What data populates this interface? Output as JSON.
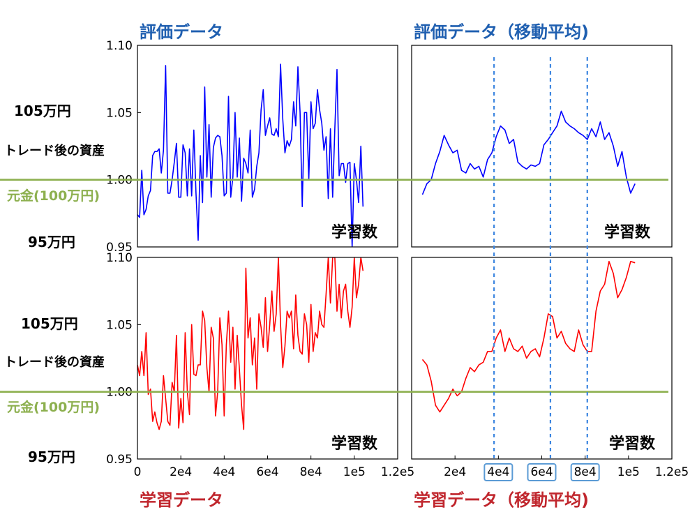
{
  "headers": {
    "eval": "評価データ",
    "eval_ma": "評価データ（移動平均)",
    "train": "学習データ",
    "train_ma": "学習データ（移動平均)"
  },
  "annotations": {
    "label_105": "105万円",
    "label_after": "トレード後の資産",
    "label_principal": "元金(100万円)",
    "label_95": "95万円",
    "corner_label": "学習数"
  },
  "colors": {
    "eval": "#0000ff",
    "train": "#ff0000",
    "baseline": "#8db04f",
    "header_blue": "#1f5fb0",
    "header_red": "#c0262d",
    "marker_line": "#3d86e0",
    "highlight_box": "#5b9bd5"
  },
  "highlighted_ticks": [
    "4e4",
    "6e4",
    "8e4"
  ],
  "chart_data": [
    {
      "id": "eval",
      "type": "line",
      "title": "評価データ",
      "xlabel": "",
      "ylabel": "",
      "xlim": [
        0,
        120000
      ],
      "ylim": [
        0.95,
        1.1
      ],
      "yticks": [
        "1.10",
        "1.05",
        "1.00",
        "0.95"
      ],
      "xticks": [],
      "baseline": 1.0,
      "series": [
        {
          "x": [
            0,
            1000,
            2000,
            3000,
            4000,
            5000,
            6000,
            7000,
            8000,
            9000,
            10000,
            11000,
            12000,
            13000,
            14000,
            15000,
            16000,
            17000,
            18000,
            19000,
            20000,
            21000,
            22000,
            23000,
            24000,
            25000,
            26000,
            27000,
            28000,
            29000,
            30000,
            31000,
            32000,
            33000,
            34000,
            35000,
            36000,
            37000,
            38000,
            39000,
            40000,
            41000,
            42000,
            43000,
            44000,
            45000,
            46000,
            47000,
            48000,
            49000,
            50000,
            51000,
            52000,
            53000,
            54000,
            55000,
            56000,
            57000,
            58000,
            59000,
            60000,
            61000,
            62000,
            63000,
            64000,
            65000,
            66000,
            67000,
            68000,
            69000,
            70000,
            71000,
            72000,
            73000,
            74000,
            75000,
            76000,
            77000,
            78000,
            79000,
            80000,
            81000,
            82000,
            83000,
            84000,
            85000,
            86000,
            87000,
            88000,
            89000,
            90000,
            91000,
            92000,
            93000,
            94000,
            95000,
            96000,
            97000,
            98000,
            99000,
            100000,
            101000,
            102000,
            103000,
            104000
          ],
          "values": [
            0.974,
            0.972,
            1.007,
            0.974,
            0.978,
            0.988,
            0.992,
            1.018,
            1.021,
            1.021,
            1.023,
            1.005,
            1.022,
            1.085,
            0.99,
            0.99,
            1.0,
            1.013,
            1.027,
            0.987,
            0.987,
            1.026,
            1.02,
            0.988,
            1.023,
            0.988,
            1.037,
            0.99,
            0.955,
            1.018,
            0.983,
            1.069,
            1.002,
            1.041,
            0.987,
            1.024,
            1.031,
            1.033,
            1.032,
            1.018,
            0.988,
            0.99,
            1.062,
            0.987,
            1.002,
            1.05,
            1.002,
            1.031,
            0.984,
            1.016,
            1.012,
            1.005,
            1.037,
            0.987,
            0.993,
            1.01,
            1.02,
            1.052,
            1.067,
            1.033,
            1.04,
            1.046,
            1.034,
            1.033,
            1.038,
            1.032,
            1.086,
            1.045,
            1.02,
            1.029,
            1.025,
            1.03,
            1.058,
            1.04,
            1.084,
            1.05,
            0.98,
            1.05,
            1.05,
            1.0,
            1.058,
            1.038,
            1.042,
            1.067,
            1.052,
            1.042,
            1.022,
            1.032,
            0.986,
            1.038,
            0.987,
            1.038,
            1.082,
            1.003,
            1.012,
            1.012,
            0.998,
            1.012,
            1.013,
            0.95,
            1.012,
            1.0,
            0.983,
            1.025,
            0.98
          ]
        }
      ]
    },
    {
      "id": "eval_ma",
      "type": "line",
      "title": "評価データ（移動平均)",
      "xlabel": "",
      "ylabel": "",
      "xlim": [
        0,
        120000
      ],
      "ylim": [
        0.95,
        1.1
      ],
      "yticks": [],
      "xticks": [],
      "baseline": 1.0,
      "series": [
        {
          "x": [
            5000,
            7000,
            9000,
            11000,
            13000,
            15000,
            17000,
            19000,
            21000,
            23000,
            25000,
            27000,
            29000,
            31000,
            33000,
            35000,
            37000,
            39000,
            41000,
            43000,
            45000,
            47000,
            49000,
            51000,
            53000,
            55000,
            57000,
            59000,
            61000,
            63000,
            65000,
            67000,
            69000,
            71000,
            73000,
            75000,
            77000,
            79000,
            81000,
            83000,
            85000,
            87000,
            89000,
            91000,
            93000,
            95000,
            97000,
            99000,
            101000,
            103000
          ],
          "values": [
            0.989,
            0.997,
            1.0,
            1.012,
            1.021,
            1.033,
            1.026,
            1.02,
            1.022,
            1.007,
            1.005,
            1.012,
            1.008,
            1.01,
            1.002,
            1.015,
            1.02,
            1.032,
            1.04,
            1.037,
            1.027,
            1.03,
            1.013,
            1.01,
            1.008,
            1.011,
            1.01,
            1.012,
            1.026,
            1.03,
            1.035,
            1.04,
            1.051,
            1.043,
            1.04,
            1.038,
            1.035,
            1.033,
            1.03,
            1.038,
            1.032,
            1.043,
            1.03,
            1.035,
            1.025,
            1.01,
            1.021,
            1.002,
            0.99,
            0.997
          ]
        }
      ]
    },
    {
      "id": "train",
      "type": "line",
      "title": "学習データ",
      "xlabel": "",
      "ylabel": "",
      "xlim": [
        0,
        120000
      ],
      "ylim": [
        0.95,
        1.1
      ],
      "yticks": [
        "1.10",
        "1.05",
        "1.00",
        "0.95"
      ],
      "xticks": [
        "0",
        "2e4",
        "4e4",
        "6e4",
        "8e4",
        "1e5",
        "1.2e5"
      ],
      "baseline": 1.0,
      "series": [
        {
          "x": [
            0,
            1000,
            2000,
            3000,
            4000,
            5000,
            6000,
            7000,
            8000,
            9000,
            10000,
            11000,
            12000,
            13000,
            14000,
            15000,
            16000,
            17000,
            18000,
            19000,
            20000,
            21000,
            22000,
            23000,
            24000,
            25000,
            26000,
            27000,
            28000,
            29000,
            30000,
            31000,
            32000,
            33000,
            34000,
            35000,
            36000,
            37000,
            38000,
            39000,
            40000,
            41000,
            42000,
            43000,
            44000,
            45000,
            46000,
            47000,
            48000,
            49000,
            50000,
            51000,
            52000,
            53000,
            54000,
            55000,
            56000,
            57000,
            58000,
            59000,
            60000,
            61000,
            62000,
            63000,
            64000,
            65000,
            66000,
            67000,
            68000,
            69000,
            70000,
            71000,
            72000,
            73000,
            74000,
            75000,
            76000,
            77000,
            78000,
            79000,
            80000,
            81000,
            82000,
            83000,
            84000,
            85000,
            86000,
            87000,
            88000,
            89000,
            90000,
            91000,
            92000,
            93000,
            94000,
            95000,
            96000,
            97000,
            98000,
            99000,
            100000,
            101000,
            102000,
            103000,
            104000
          ],
          "values": [
            1.02,
            1.012,
            1.03,
            1.012,
            1.044,
            0.998,
            1.002,
            0.978,
            0.985,
            0.977,
            0.972,
            0.978,
            1.012,
            0.995,
            0.978,
            0.975,
            1.007,
            1.0,
            1.042,
            0.973,
            0.995,
            0.977,
            1.044,
            1.0,
            0.983,
            1.05,
            1.013,
            1.012,
            1.02,
            1.02,
            1.06,
            1.053,
            1.018,
            1.0,
            1.048,
            1.04,
            0.982,
            1.0,
            1.055,
            1.035,
            0.982,
            1.035,
            1.06,
            1.022,
            1.048,
            1.002,
            1.042,
            1.017,
            0.99,
            0.972,
            1.092,
            1.04,
            1.055,
            1.02,
            1.04,
            1.002,
            1.058,
            1.048,
            1.033,
            1.07,
            1.03,
            1.05,
            1.075,
            1.045,
            1.058,
            1.1,
            1.05,
            1.018,
            1.034,
            1.06,
            1.055,
            1.06,
            1.032,
            1.072,
            1.042,
            1.03,
            1.028,
            1.058,
            1.05,
            1.022,
            1.065,
            1.03,
            1.044,
            1.04,
            1.06,
            1.05,
            1.048,
            1.073,
            1.1,
            1.066,
            1.1,
            1.1,
            1.06,
            1.08,
            1.055,
            1.075,
            1.08,
            1.06,
            1.048,
            1.063,
            1.1,
            1.07,
            1.08,
            1.1,
            1.09
          ]
        }
      ]
    },
    {
      "id": "train_ma",
      "type": "line",
      "title": "学習データ（移動平均)",
      "xlabel": "",
      "ylabel": "",
      "xlim": [
        0,
        120000
      ],
      "ylim": [
        0.95,
        1.1
      ],
      "yticks": [],
      "xticks": [
        "2e4",
        "4e4",
        "6e4",
        "8e4",
        "1e5",
        "1.2e5"
      ],
      "baseline": 1.0,
      "series": [
        {
          "x": [
            5000,
            7000,
            9000,
            11000,
            13000,
            15000,
            17000,
            19000,
            21000,
            23000,
            25000,
            27000,
            29000,
            31000,
            33000,
            35000,
            37000,
            39000,
            41000,
            43000,
            45000,
            47000,
            49000,
            51000,
            53000,
            55000,
            57000,
            59000,
            61000,
            63000,
            65000,
            67000,
            69000,
            71000,
            73000,
            75000,
            77000,
            79000,
            81000,
            83000,
            85000,
            87000,
            89000,
            91000,
            93000,
            95000,
            97000,
            99000,
            101000,
            103000
          ],
          "values": [
            1.024,
            1.02,
            1.008,
            0.99,
            0.985,
            0.99,
            0.995,
            1.002,
            0.997,
            1.0,
            1.01,
            1.018,
            1.015,
            1.02,
            1.022,
            1.03,
            1.03,
            1.04,
            1.046,
            1.03,
            1.04,
            1.032,
            1.03,
            1.034,
            1.025,
            1.03,
            1.032,
            1.026,
            1.04,
            1.058,
            1.056,
            1.04,
            1.045,
            1.036,
            1.032,
            1.03,
            1.046,
            1.035,
            1.03,
            1.03,
            1.06,
            1.075,
            1.08,
            1.097,
            1.088,
            1.07,
            1.076,
            1.085,
            1.097,
            1.096
          ]
        }
      ]
    }
  ]
}
